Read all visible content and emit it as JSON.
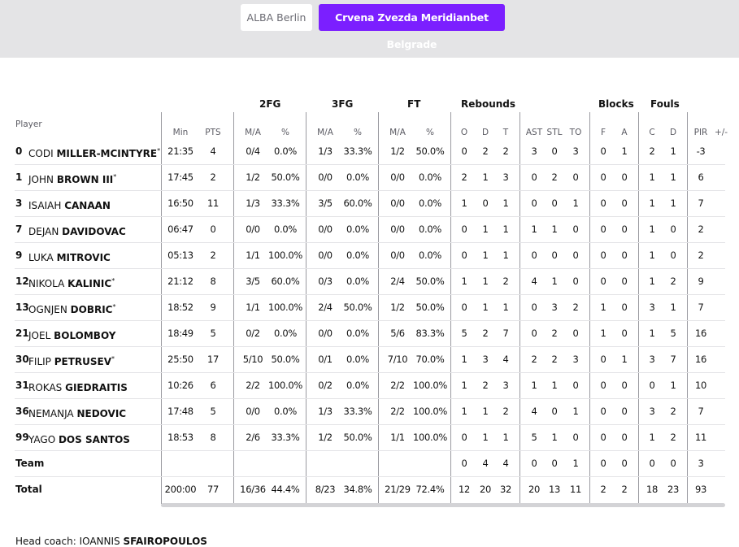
{
  "teams": {
    "inactive_label": "ALBA Berlin",
    "active_label": "Crvena Zvezda Meridianbet Belgrade",
    "accent": "#7b1fff"
  },
  "group_headers": {
    "fg2": "2FG",
    "fg3": "3FG",
    "ft": "FT",
    "rebounds": "Rebounds",
    "blocks": "Blocks",
    "fouls": "Fouls"
  },
  "columns": {
    "player": "Player",
    "min": "Min",
    "pts": "PTS",
    "fg2_ma": "M/A",
    "fg2_pct": "%",
    "fg3_ma": "M/A",
    "fg3_pct": "%",
    "ft_ma": "M/A",
    "ft_pct": "%",
    "o": "O",
    "d": "D",
    "t": "T",
    "ast": "AST",
    "stl": "STL",
    "to": "TO",
    "bf": "F",
    "ba": "A",
    "fc": "C",
    "fd": "D",
    "pir": "PIR",
    "pm": "+/-"
  },
  "players": [
    {
      "num": "0",
      "first": "CODI",
      "last": "MILLER-MCINTYRE",
      "starter": "*",
      "min": "21:35",
      "pts": "4",
      "fg2_ma": "0/4",
      "fg2_pct": "0.0%",
      "fg3_ma": "1/3",
      "fg3_pct": "33.3%",
      "ft_ma": "1/2",
      "ft_pct": "50.0%",
      "o": "0",
      "d": "2",
      "t": "2",
      "ast": "3",
      "stl": "0",
      "to": "3",
      "bf": "0",
      "ba": "1",
      "fc": "2",
      "fd": "1",
      "pir": "-3",
      "pm": ""
    },
    {
      "num": "1",
      "first": "JOHN",
      "last": "BROWN III",
      "starter": "*",
      "min": "17:45",
      "pts": "2",
      "fg2_ma": "1/2",
      "fg2_pct": "50.0%",
      "fg3_ma": "0/0",
      "fg3_pct": "0.0%",
      "ft_ma": "0/0",
      "ft_pct": "0.0%",
      "o": "2",
      "d": "1",
      "t": "3",
      "ast": "0",
      "stl": "2",
      "to": "0",
      "bf": "0",
      "ba": "0",
      "fc": "1",
      "fd": "1",
      "pir": "6",
      "pm": ""
    },
    {
      "num": "3",
      "first": "ISAIAH",
      "last": "CANAAN",
      "starter": "",
      "min": "16:50",
      "pts": "11",
      "fg2_ma": "1/3",
      "fg2_pct": "33.3%",
      "fg3_ma": "3/5",
      "fg3_pct": "60.0%",
      "ft_ma": "0/0",
      "ft_pct": "0.0%",
      "o": "1",
      "d": "0",
      "t": "1",
      "ast": "0",
      "stl": "0",
      "to": "1",
      "bf": "0",
      "ba": "0",
      "fc": "1",
      "fd": "1",
      "pir": "7",
      "pm": ""
    },
    {
      "num": "7",
      "first": "DEJAN",
      "last": "DAVIDOVAC",
      "starter": "",
      "min": "06:47",
      "pts": "0",
      "fg2_ma": "0/0",
      "fg2_pct": "0.0%",
      "fg3_ma": "0/0",
      "fg3_pct": "0.0%",
      "ft_ma": "0/0",
      "ft_pct": "0.0%",
      "o": "0",
      "d": "1",
      "t": "1",
      "ast": "1",
      "stl": "1",
      "to": "0",
      "bf": "0",
      "ba": "0",
      "fc": "1",
      "fd": "0",
      "pir": "2",
      "pm": ""
    },
    {
      "num": "9",
      "first": "LUKA",
      "last": "MITROVIC",
      "starter": "",
      "min": "05:13",
      "pts": "2",
      "fg2_ma": "1/1",
      "fg2_pct": "100.0%",
      "fg3_ma": "0/0",
      "fg3_pct": "0.0%",
      "ft_ma": "0/0",
      "ft_pct": "0.0%",
      "o": "0",
      "d": "1",
      "t": "1",
      "ast": "0",
      "stl": "0",
      "to": "0",
      "bf": "0",
      "ba": "0",
      "fc": "1",
      "fd": "0",
      "pir": "2",
      "pm": ""
    },
    {
      "num": "12",
      "first": "NIKOLA",
      "last": "KALINIC",
      "starter": "*",
      "min": "21:12",
      "pts": "8",
      "fg2_ma": "3/5",
      "fg2_pct": "60.0%",
      "fg3_ma": "0/3",
      "fg3_pct": "0.0%",
      "ft_ma": "2/4",
      "ft_pct": "50.0%",
      "o": "1",
      "d": "1",
      "t": "2",
      "ast": "4",
      "stl": "1",
      "to": "0",
      "bf": "0",
      "ba": "0",
      "fc": "1",
      "fd": "2",
      "pir": "9",
      "pm": ""
    },
    {
      "num": "13",
      "first": "OGNJEN",
      "last": "DOBRIC",
      "starter": "*",
      "min": "18:52",
      "pts": "9",
      "fg2_ma": "1/1",
      "fg2_pct": "100.0%",
      "fg3_ma": "2/4",
      "fg3_pct": "50.0%",
      "ft_ma": "1/2",
      "ft_pct": "50.0%",
      "o": "0",
      "d": "1",
      "t": "1",
      "ast": "0",
      "stl": "3",
      "to": "2",
      "bf": "1",
      "ba": "0",
      "fc": "3",
      "fd": "1",
      "pir": "7",
      "pm": ""
    },
    {
      "num": "21",
      "first": "JOEL",
      "last": "BOLOMBOY",
      "starter": "",
      "min": "18:49",
      "pts": "5",
      "fg2_ma": "0/2",
      "fg2_pct": "0.0%",
      "fg3_ma": "0/0",
      "fg3_pct": "0.0%",
      "ft_ma": "5/6",
      "ft_pct": "83.3%",
      "o": "5",
      "d": "2",
      "t": "7",
      "ast": "0",
      "stl": "2",
      "to": "0",
      "bf": "1",
      "ba": "0",
      "fc": "1",
      "fd": "5",
      "pir": "16",
      "pm": ""
    },
    {
      "num": "30",
      "first": "FILIP",
      "last": "PETRUSEV",
      "starter": "*",
      "min": "25:50",
      "pts": "17",
      "fg2_ma": "5/10",
      "fg2_pct": "50.0%",
      "fg3_ma": "0/1",
      "fg3_pct": "0.0%",
      "ft_ma": "7/10",
      "ft_pct": "70.0%",
      "o": "1",
      "d": "3",
      "t": "4",
      "ast": "2",
      "stl": "2",
      "to": "3",
      "bf": "0",
      "ba": "1",
      "fc": "3",
      "fd": "7",
      "pir": "16",
      "pm": ""
    },
    {
      "num": "31",
      "first": "ROKAS",
      "last": "GIEDRAITIS",
      "starter": "",
      "min": "10:26",
      "pts": "6",
      "fg2_ma": "2/2",
      "fg2_pct": "100.0%",
      "fg3_ma": "0/2",
      "fg3_pct": "0.0%",
      "ft_ma": "2/2",
      "ft_pct": "100.0%",
      "o": "1",
      "d": "2",
      "t": "3",
      "ast": "1",
      "stl": "1",
      "to": "0",
      "bf": "0",
      "ba": "0",
      "fc": "0",
      "fd": "1",
      "pir": "10",
      "pm": ""
    },
    {
      "num": "36",
      "first": "NEMANJA",
      "last": "NEDOVIC",
      "starter": "",
      "min": "17:48",
      "pts": "5",
      "fg2_ma": "0/0",
      "fg2_pct": "0.0%",
      "fg3_ma": "1/3",
      "fg3_pct": "33.3%",
      "ft_ma": "2/2",
      "ft_pct": "100.0%",
      "o": "1",
      "d": "1",
      "t": "2",
      "ast": "4",
      "stl": "0",
      "to": "1",
      "bf": "0",
      "ba": "0",
      "fc": "3",
      "fd": "2",
      "pir": "7",
      "pm": ""
    },
    {
      "num": "99",
      "first": "YAGO",
      "last": "DOS SANTOS",
      "starter": "",
      "min": "18:53",
      "pts": "8",
      "fg2_ma": "2/6",
      "fg2_pct": "33.3%",
      "fg3_ma": "1/2",
      "fg3_pct": "50.0%",
      "ft_ma": "1/1",
      "ft_pct": "100.0%",
      "o": "0",
      "d": "1",
      "t": "1",
      "ast": "5",
      "stl": "1",
      "to": "0",
      "bf": "0",
      "ba": "0",
      "fc": "1",
      "fd": "2",
      "pir": "11",
      "pm": ""
    }
  ],
  "team_row": {
    "label": "Team",
    "min": "",
    "pts": "",
    "fg2_ma": "",
    "fg2_pct": "",
    "fg3_ma": "",
    "fg3_pct": "",
    "ft_ma": "",
    "ft_pct": "",
    "o": "0",
    "d": "4",
    "t": "4",
    "ast": "0",
    "stl": "0",
    "to": "1",
    "bf": "0",
    "ba": "0",
    "fc": "0",
    "fd": "0",
    "pir": "3",
    "pm": ""
  },
  "total_row": {
    "label": "Total",
    "min": "200:00",
    "pts": "77",
    "fg2_ma": "16/36",
    "fg2_pct": "44.4%",
    "fg3_ma": "8/23",
    "fg3_pct": "34.8%",
    "ft_ma": "21/29",
    "ft_pct": "72.4%",
    "o": "12",
    "d": "20",
    "t": "32",
    "ast": "20",
    "stl": "13",
    "to": "11",
    "bf": "2",
    "ba": "2",
    "fc": "18",
    "fd": "23",
    "pir": "93",
    "pm": ""
  },
  "coach": {
    "label": "Head coach:",
    "first": "IOANNIS",
    "last": "SFAIROPOULOS"
  }
}
